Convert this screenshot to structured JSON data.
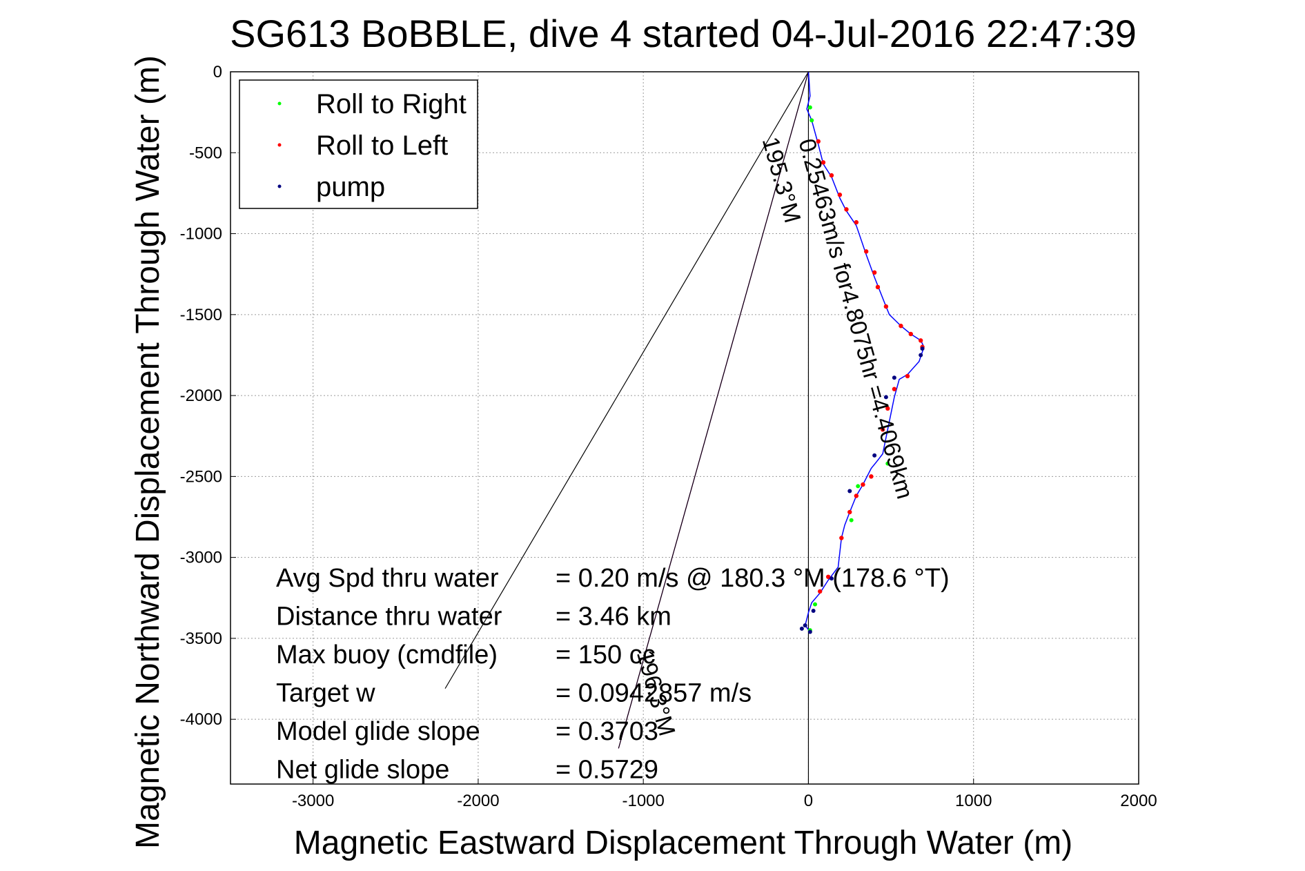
{
  "chart_data": {
    "type": "line",
    "title": "SG613 BoBBLE, dive 4 started 04-Jul-2016 22:47:39",
    "xlabel": "Magnetic Eastward Displacement Through Water (m)",
    "ylabel": "Magnetic Northward Displacement Through Water (m)",
    "xlim": [
      -3500,
      2000
    ],
    "ylim": [
      -4400,
      0
    ],
    "xticks": [
      -3000,
      -2000,
      -1000,
      0,
      1000,
      2000
    ],
    "yticks": [
      0,
      -500,
      -1000,
      -1500,
      -2000,
      -2500,
      -3000,
      -3500,
      -4000
    ],
    "grid": true,
    "legend_position": "top-left",
    "legend": [
      {
        "label": "Roll to Right",
        "color": "#00ff00"
      },
      {
        "label": "Roll to Left",
        "color": "#ff0000"
      },
      {
        "label": "pump",
        "color": "#000080"
      }
    ],
    "track": {
      "color": "#0000ff",
      "x": [
        0,
        10,
        -10,
        20,
        60,
        90,
        140,
        190,
        230,
        290,
        350,
        400,
        470,
        490,
        520,
        560,
        620,
        680,
        700,
        670,
        600,
        550,
        520,
        480,
        450,
        420,
        380,
        330,
        290,
        250,
        220,
        200,
        190,
        180,
        120,
        70,
        20,
        0,
        -20,
        10
      ],
      "y": [
        0,
        -150,
        -230,
        -300,
        -450,
        -570,
        -650,
        -780,
        -860,
        -950,
        -1130,
        -1270,
        -1450,
        -1500,
        -1530,
        -1570,
        -1620,
        -1660,
        -1700,
        -1790,
        -1870,
        -1900,
        -2010,
        -2210,
        -2360,
        -2400,
        -2450,
        -2550,
        -2620,
        -2720,
        -2800,
        -2880,
        -2970,
        -3060,
        -3140,
        -3220,
        -3280,
        -3340,
        -3420,
        -3460
      ]
    },
    "roll_right_points": {
      "x": [
        10,
        20,
        480,
        300,
        260,
        40,
        10
      ],
      "y": [
        -220,
        -300,
        -2420,
        -2560,
        -2770,
        -3290,
        -3450
      ]
    },
    "roll_left_points": {
      "x": [
        60,
        90,
        140,
        190,
        230,
        290,
        350,
        400,
        420,
        470,
        560,
        620,
        680,
        690,
        600,
        520,
        480,
        450,
        380,
        330,
        290,
        250,
        200,
        120,
        70
      ],
      "y": [
        -430,
        -560,
        -640,
        -760,
        -850,
        -930,
        -1110,
        -1240,
        -1330,
        -1450,
        -1570,
        -1620,
        -1660,
        -1700,
        -1880,
        -1960,
        -2080,
        -2210,
        -2500,
        -2550,
        -2620,
        -2720,
        -2880,
        -3120,
        -3210
      ]
    },
    "pump_points": {
      "x": [
        690,
        680,
        520,
        470,
        400,
        250,
        140,
        30,
        -20,
        -40,
        10
      ],
      "y": [
        -1710,
        -1750,
        -1890,
        -2010,
        -2370,
        -2590,
        -3130,
        -3330,
        -3420,
        -3440,
        -3460
      ]
    },
    "reference_lines": [
      {
        "color": "#000000",
        "x": [
          0,
          0
        ],
        "y": [
          0,
          -4400
        ]
      },
      {
        "color": "#000000",
        "x": [
          0,
          -2200
        ],
        "y": [
          0,
          -3810
        ]
      },
      {
        "color": "#ff00ff",
        "x": [
          0,
          -1150
        ],
        "y": [
          0,
          -4180
        ]
      },
      {
        "color": "#000000",
        "x": [
          0,
          -1150
        ],
        "y": [
          0,
          -4180
        ]
      }
    ],
    "rotated_annotations": [
      {
        "text": "0.25463m/s for4.8075hr =4.4069km",
        "x": -60,
        "y": -430,
        "angle": 74.5
      },
      {
        "text": "195.3°M",
        "x": -280,
        "y": -420,
        "angle": 74.5
      },
      {
        "text": "196.3°M",
        "x": -1040,
        "y": -3590,
        "angle": 74.5
      }
    ],
    "annotations": [
      {
        "label": "Avg Spd thru water",
        "value": "=  0.20 m/s @ 180.3 °M (178.6 °T)"
      },
      {
        "label": "Distance thru water",
        "value": "=  3.46 km"
      },
      {
        "label": "Max buoy (cmdfile)",
        "value": "= 150 cc"
      },
      {
        "label": "Target w",
        "value": "= 0.0942857 m/s"
      },
      {
        "label": "Model glide slope",
        "value": "= 0.3703"
      },
      {
        "label": "Net glide slope",
        "value": "= 0.5729"
      }
    ]
  }
}
